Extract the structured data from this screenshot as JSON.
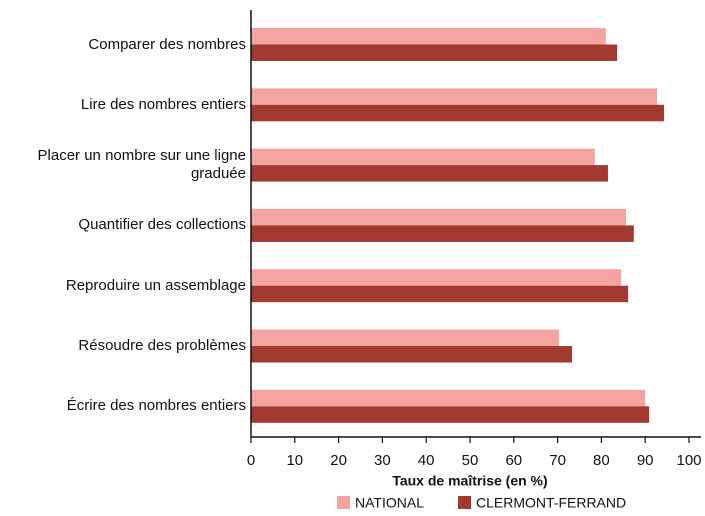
{
  "chart_data": {
    "type": "bar",
    "orientation": "horizontal",
    "categories": [
      "Comparer des nombres",
      "Lire des nombres entiers",
      "Placer un nombre sur une ligne graduée",
      "Quantifier des collections",
      "Reproduire un assemblage",
      "Résoudre des problèmes",
      "Écrire des nombres entiers"
    ],
    "series": [
      {
        "name": "NATIONAL",
        "color": "#f4a4a0",
        "values": [
          81.0,
          92.7,
          78.5,
          85.6,
          84.5,
          70.3,
          90.0
        ]
      },
      {
        "name": "CLERMONT-FERRAND",
        "color": "#a33a2f",
        "values": [
          83.6,
          94.3,
          81.5,
          87.4,
          86.1,
          73.3,
          90.9
        ]
      }
    ],
    "xlabel": "Taux de maîtrise (en %)",
    "xlim": [
      0,
      100
    ],
    "xticks": [
      0,
      10,
      20,
      30,
      40,
      50,
      60,
      70,
      80,
      90,
      100
    ],
    "grid": false,
    "legend": "bottom"
  }
}
